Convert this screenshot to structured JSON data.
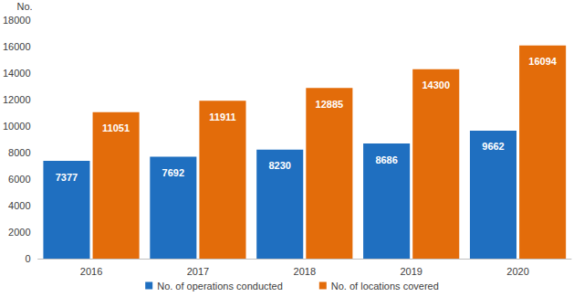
{
  "chart_data": {
    "type": "bar",
    "ylabel": "No.",
    "categories": [
      "2016",
      "2017",
      "2018",
      "2019",
      "2020"
    ],
    "series": [
      {
        "name": "No. of operations conducted",
        "color": "#1f6fc0",
        "values": [
          7377,
          7692,
          8230,
          8686,
          9662
        ]
      },
      {
        "name": "No. of locations covered",
        "color": "#e36c0a",
        "values": [
          11051,
          11911,
          12885,
          14300,
          16094
        ]
      }
    ],
    "ylim": [
      0,
      18000
    ],
    "yticks": [
      0,
      2000,
      4000,
      6000,
      8000,
      10000,
      12000,
      14000,
      16000,
      18000
    ],
    "grid": false,
    "legend": "bottom",
    "data_labels": true
  }
}
